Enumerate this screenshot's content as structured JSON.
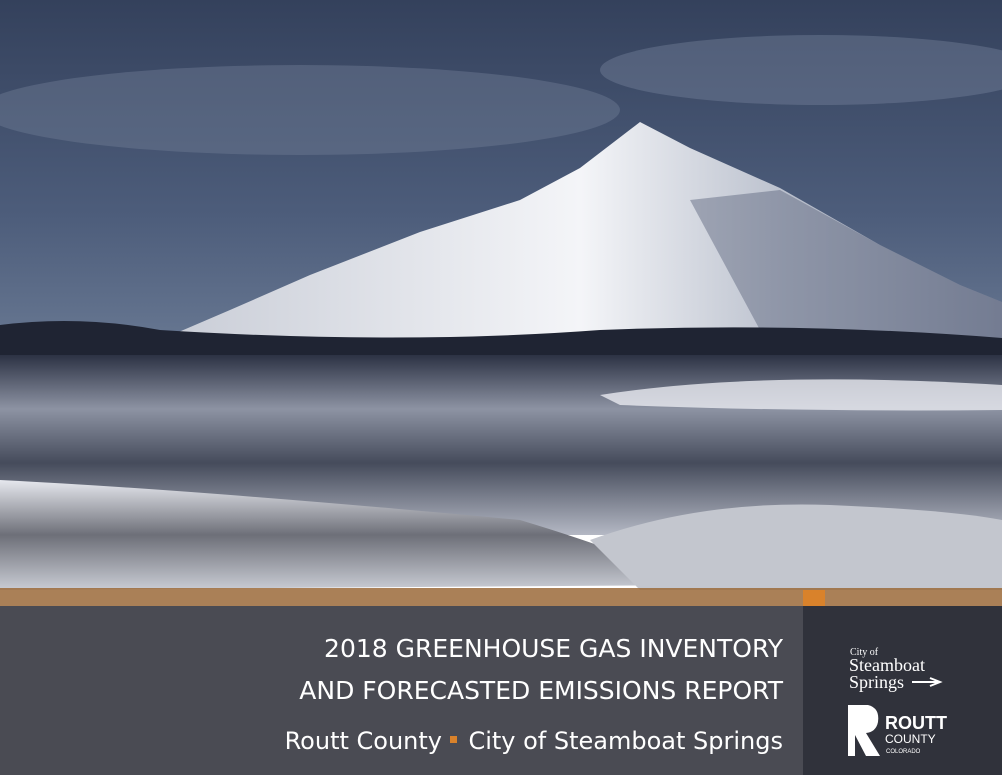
{
  "cover": {
    "title_lines": [
      "2018 GREENHOUSE GAS INVENTORY",
      "AND FORECASTED EMISSIONS REPORT"
    ],
    "subtitle": {
      "left": "Routt County",
      "right": "City of Steamboat Springs"
    }
  },
  "logos": {
    "steamboat": {
      "prefix": "City of",
      "line1": "Steamboat",
      "line2": "Springs"
    },
    "routt": {
      "name": "ROUTT",
      "line2": "COUNTY",
      "line3": "COLORADO"
    }
  }
}
